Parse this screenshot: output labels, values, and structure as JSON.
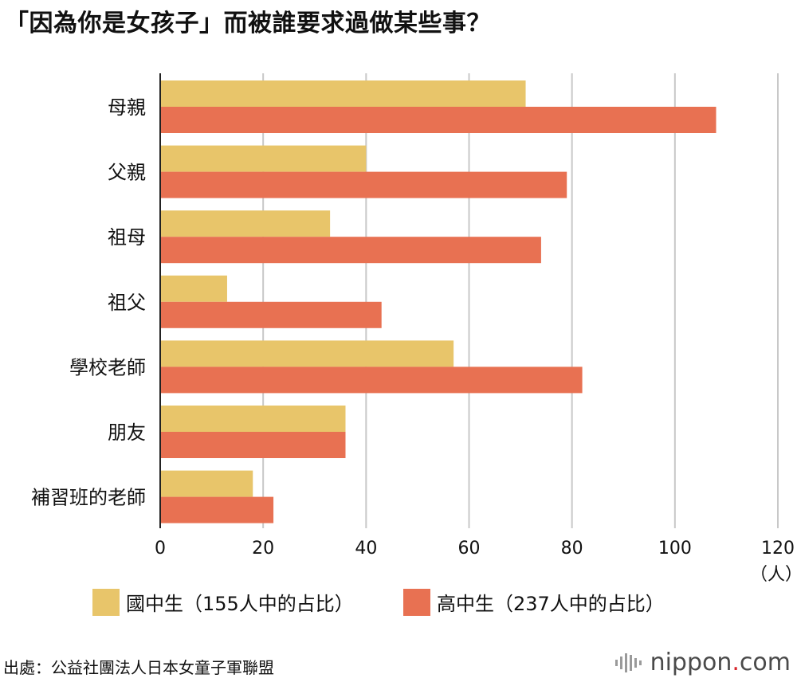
{
  "title": "「因為你是女孩子」而被誰要求過做某些事？",
  "chart_data": {
    "type": "bar",
    "orientation": "horizontal",
    "categories": [
      "母親",
      "父親",
      "祖母",
      "祖父",
      "學校老師",
      "朋友",
      "補習班的老師"
    ],
    "series": [
      {
        "name": "國中生（155人中的占比）",
        "color": "#e8c56a",
        "values": [
          71,
          40,
          33,
          13,
          57,
          36,
          18
        ]
      },
      {
        "name": "高中生（237人中的占比）",
        "color": "#e87152",
        "values": [
          108,
          79,
          74,
          43,
          82,
          36,
          22
        ]
      }
    ],
    "xticks": [
      0,
      20,
      40,
      60,
      80,
      100,
      120
    ],
    "xlim": [
      0,
      120
    ],
    "x_unit": "（人）",
    "grid": true,
    "legend_position": "bottom"
  },
  "source": "出處：公益社團法人日本女童子軍聯盟",
  "logo": {
    "text": "nippon",
    "dot": ".",
    "suffix": "com"
  }
}
